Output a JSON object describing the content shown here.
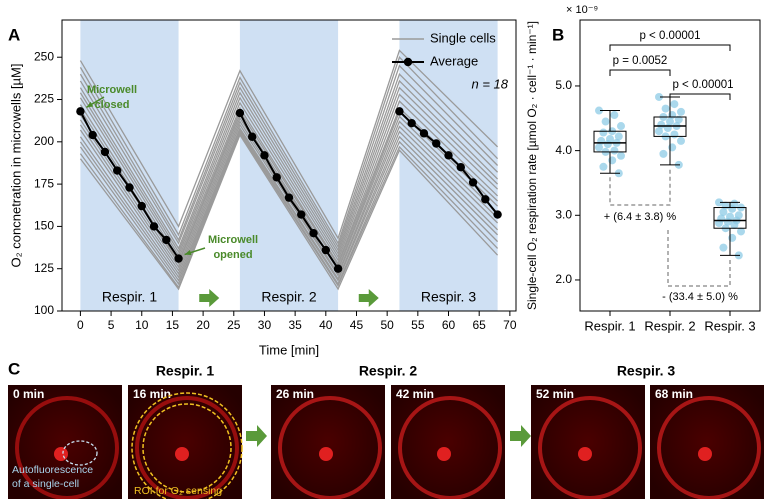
{
  "panel_labels": [
    "A",
    "B",
    "C"
  ],
  "chart_data": [
    {
      "type": "line",
      "x_label": "Time [min]",
      "y_label": "O₂ concnetration in microwells [µM]",
      "xlim": [
        -3,
        71
      ],
      "ylim": [
        100,
        272
      ],
      "xticks": [
        0,
        5,
        10,
        15,
        20,
        25,
        30,
        35,
        40,
        45,
        50,
        55,
        60,
        65,
        70
      ],
      "yticks": [
        100,
        125,
        150,
        175,
        200,
        225,
        250
      ],
      "phases": [
        {
          "start": 0,
          "end": 16,
          "label": "Respir. 1"
        },
        {
          "start": 26,
          "end": 42,
          "label": "Respir. 2"
        },
        {
          "start": 52,
          "end": 68,
          "label": "Respir. 3"
        }
      ],
      "phase_color": "#cfe0f3",
      "annotations": [
        [
          "Microwell",
          "closed"
        ],
        [
          "Microwell",
          "opened"
        ]
      ],
      "annotation_color": "#4a8a2a",
      "n_label": "n = 18",
      "series": [
        {
          "name": "Single cells",
          "color": "#9a9a9a",
          "x": [
            0,
            16,
            26,
            42,
            52,
            68
          ],
          "values": [
            [
              248,
              150,
              242,
              143,
              254,
              197
            ],
            [
              244,
              145,
              238,
              140,
              250,
              190
            ],
            [
              240,
              142,
              235,
              138,
              245,
              186
            ],
            [
              236,
              140,
              232,
              136,
              240,
              182
            ],
            [
              232,
              137,
              229,
              134,
              236,
              178
            ],
            [
              229,
              135,
              226,
              132,
              232,
              175
            ],
            [
              226,
              133,
              223,
              130,
              228,
              172
            ],
            [
              222,
              131,
              220,
              128,
              224,
              168
            ],
            [
              219,
              129,
              218,
              127,
              220,
              165
            ],
            [
              216,
              128,
              216,
              125,
              218,
              162
            ],
            [
              213,
              126,
              214,
              124,
              215,
              158
            ],
            [
              210,
              124,
              212,
              122,
              212,
              155
            ],
            [
              207,
              122,
              210,
              121,
              209,
              152
            ],
            [
              203,
              120,
              208,
              119,
              206,
              148
            ],
            [
              200,
              118,
              207,
              118,
              203,
              145
            ],
            [
              197,
              116,
              206,
              116,
              200,
              141
            ],
            [
              193,
              114,
              205,
              115,
              197,
              137
            ],
            [
              190,
              113,
              204,
              113,
              195,
              133
            ]
          ]
        },
        {
          "name": "Average",
          "color": "#000000",
          "x": [
            0,
            2,
            4,
            6,
            8,
            10,
            12,
            14,
            16,
            26,
            28,
            30,
            32,
            34,
            36,
            38,
            40,
            42,
            52,
            54,
            56,
            58,
            60,
            62,
            64,
            66,
            68
          ],
          "values": [
            218,
            204,
            194,
            183,
            173,
            162,
            150,
            142,
            131,
            217,
            203,
            192,
            179,
            167,
            157,
            146,
            136,
            125,
            218,
            211,
            205,
            199,
            192,
            185,
            176,
            166,
            157
          ]
        }
      ]
    },
    {
      "type": "box",
      "y_label": "Single-cell O₂ respiration rate [µmol O₂ · cell⁻¹ · min⁻¹]",
      "y_multiplier_label": "× 10⁻⁹",
      "ylim": [
        1.52,
        6.02
      ],
      "yticks": [
        {
          "value": 2,
          "label": "2.0"
        },
        {
          "value": 3,
          "label": "3.0"
        },
        {
          "value": 4,
          "label": "4.0"
        },
        {
          "value": 5,
          "label": "5.0"
        }
      ],
      "categories": [
        "Respir. 1",
        "Respir. 2",
        "Respir. 3"
      ],
      "point_color": "#8ecbe6",
      "boxes": [
        {
          "low": 3.65,
          "q1": 3.98,
          "median": 4.12,
          "q3": 4.3,
          "high": 4.62
        },
        {
          "low": 3.78,
          "q1": 4.22,
          "median": 4.38,
          "q3": 4.52,
          "high": 4.83
        },
        {
          "low": 2.38,
          "q1": 2.8,
          "median": 2.92,
          "q3": 3.12,
          "high": 3.2
        }
      ],
      "points": [
        [
          4.62,
          4.55,
          4.45,
          4.38,
          4.3,
          4.28,
          4.22,
          4.18,
          4.15,
          4.12,
          4.1,
          4.05,
          4.0,
          3.98,
          3.92,
          3.85,
          3.75,
          3.65
        ],
        [
          4.83,
          4.72,
          4.65,
          4.6,
          4.55,
          4.52,
          4.48,
          4.45,
          4.4,
          4.38,
          4.35,
          4.3,
          4.25,
          4.22,
          4.15,
          4.05,
          3.95,
          3.78
        ],
        [
          3.2,
          3.18,
          3.15,
          3.12,
          3.1,
          3.05,
          3.0,
          2.98,
          2.95,
          2.92,
          2.9,
          2.88,
          2.85,
          2.8,
          2.75,
          2.65,
          2.5,
          2.38
        ]
      ],
      "significance": [
        "p < 0.00001",
        "p = 0.0052",
        "p < 0.00001"
      ],
      "changes": [
        "+ (6.4 ± 3.8) %",
        "- (33.4 ± 5.0) %"
      ]
    }
  ],
  "panel_c": {
    "groups": [
      "Respir. 1",
      "Respir. 2",
      "Respir. 3"
    ],
    "frames": [
      "0 min",
      "16 min",
      "26 min",
      "42 min",
      "52 min",
      "68 min"
    ],
    "captions": [
      [
        "Autofluorescence",
        "of a single-cell"
      ],
      "ROI for O₂ sensing"
    ]
  }
}
